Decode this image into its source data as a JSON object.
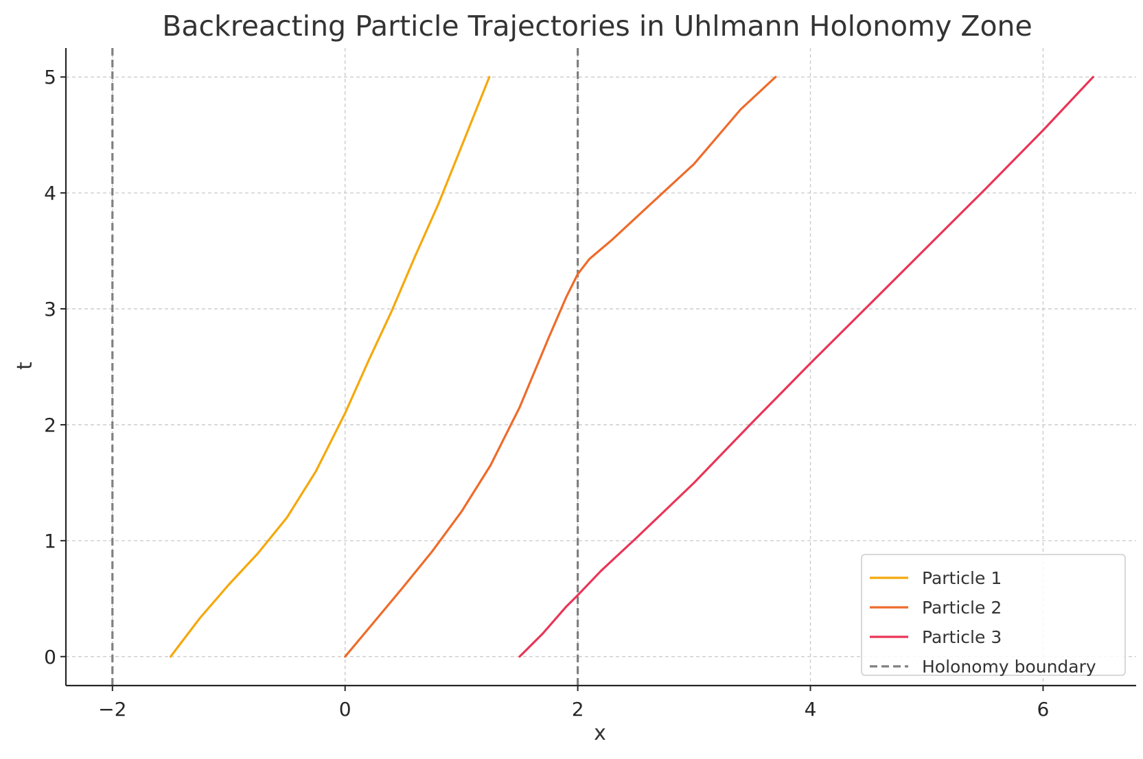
{
  "chart_data": {
    "type": "line",
    "title": "Backreacting Particle Trajectories in Uhlmann Holonomy Zone",
    "xlabel": "x",
    "ylabel": "t",
    "xlim": [
      -2.4,
      6.8
    ],
    "ylim": [
      -0.25,
      5.25
    ],
    "x_ticks": [
      -2,
      0,
      2,
      4,
      6
    ],
    "x_tick_labels": [
      "−2",
      "0",
      "2",
      "4",
      "6"
    ],
    "y_ticks": [
      0,
      1,
      2,
      3,
      4,
      5
    ],
    "y_tick_labels": [
      "0",
      "1",
      "2",
      "3",
      "4",
      "5"
    ],
    "grid": true,
    "legend_position": "bottom-right",
    "series": [
      {
        "name": "Particle 1",
        "color": "#f5a80b",
        "x": [
          -1.5,
          -1.25,
          -1.0,
          -0.75,
          -0.5,
          -0.25,
          0.0,
          0.2,
          0.4,
          0.6,
          0.8,
          1.0,
          1.24
        ],
        "y": [
          0.0,
          0.33,
          0.62,
          0.89,
          1.2,
          1.6,
          2.1,
          2.55,
          2.98,
          3.45,
          3.9,
          4.4,
          5.0
        ]
      },
      {
        "name": "Particle 2",
        "color": "#ee6b2a",
        "x": [
          0.0,
          0.25,
          0.5,
          0.75,
          1.0,
          1.25,
          1.5,
          1.75,
          1.9,
          2.0,
          2.1,
          2.3,
          2.6,
          3.0,
          3.4,
          3.7
        ],
        "y": [
          0.0,
          0.3,
          0.6,
          0.91,
          1.25,
          1.65,
          2.15,
          2.75,
          3.1,
          3.3,
          3.43,
          3.6,
          3.88,
          4.25,
          4.72,
          5.0
        ]
      },
      {
        "name": "Particle 3",
        "color": "#ea3456",
        "x": [
          1.5,
          1.7,
          1.9,
          2.0,
          2.2,
          2.5,
          3.0,
          3.5,
          4.0,
          4.5,
          5.0,
          5.5,
          6.0,
          6.43
        ],
        "y": [
          0.0,
          0.2,
          0.43,
          0.53,
          0.74,
          1.02,
          1.5,
          2.02,
          2.53,
          3.03,
          3.53,
          4.03,
          4.54,
          5.0
        ]
      }
    ],
    "vlines": [
      {
        "name": "Holonomy boundary",
        "x": -2,
        "color": "#808080",
        "style": "dashed"
      },
      {
        "name": "Holonomy boundary",
        "x": 2,
        "color": "#808080",
        "style": "dashed"
      }
    ],
    "legend": [
      "Particle 1",
      "Particle 2",
      "Particle 3",
      "Holonomy boundary"
    ]
  }
}
